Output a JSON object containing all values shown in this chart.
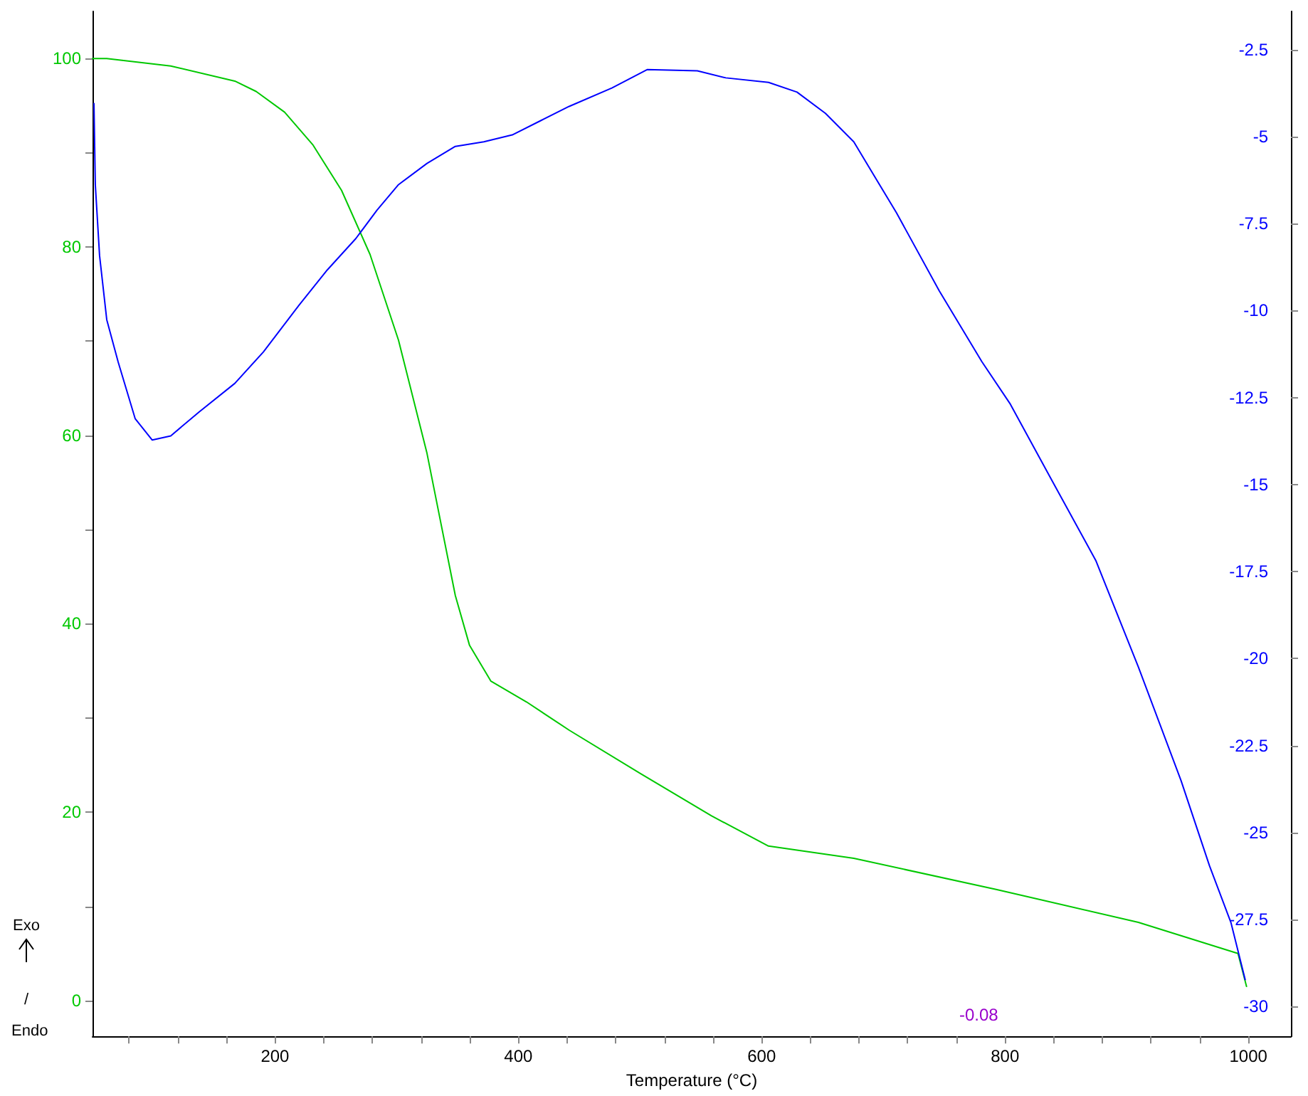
{
  "chart_data": {
    "type": "line",
    "xlabel": "Temperature (°C)",
    "xlim": [
      50,
      1035
    ],
    "ylim": [
      -3.8,
      105
    ],
    "y2lim": [
      -30.86,
      -1.4
    ],
    "xticks": [
      {
        "value": 80,
        "label": null
      },
      {
        "value": 120,
        "label": null
      },
      {
        "value": 160,
        "label": null
      },
      200,
      {
        "value": 240,
        "label": null
      },
      {
        "value": 280,
        "label": null
      },
      {
        "value": 320,
        "label": null
      },
      {
        "value": 360,
        "label": null
      },
      400,
      {
        "value": 440,
        "label": null
      },
      {
        "value": 480,
        "label": null
      },
      {
        "value": 520,
        "label": null
      },
      {
        "value": 560,
        "label": null
      },
      600,
      {
        "value": 640,
        "label": null
      },
      {
        "value": 680,
        "label": null
      },
      {
        "value": 720,
        "label": null
      },
      {
        "value": 760,
        "label": null
      },
      800,
      {
        "value": 840,
        "label": null
      },
      {
        "value": 880,
        "label": null
      },
      {
        "value": 920,
        "label": null
      },
      {
        "value": 960,
        "label": null
      },
      1000
    ],
    "yticks": [
      0,
      {
        "value": 10,
        "label": null
      },
      20,
      {
        "value": 30,
        "label": null
      },
      40,
      {
        "value": 50,
        "label": null
      },
      60,
      {
        "value": 70,
        "label": null
      },
      80,
      {
        "value": 90,
        "label": null
      },
      100
    ],
    "y2ticks": [
      -30,
      -27.5,
      -25,
      -22.5,
      -20,
      -17.5,
      -15,
      -12.5,
      -10,
      -7.5,
      -5,
      -2.5
    ],
    "grid": false,
    "marker": "none",
    "line_style": "solid",
    "annotations": [
      "Exo",
      "/",
      "Endo",
      "-0.08"
    ],
    "series": [
      {
        "color": "#00c800",
        "x": [
          50.0,
          61.7,
          114.3,
          167.0,
          184.5,
          207.9,
          231.3,
          254.7,
          278.1,
          301.5,
          324.9,
          336.6,
          348.2,
          359.9,
          377.5,
          406.7,
          441.8,
          500.3,
          558.8,
          605.6,
          675.7,
          792.7,
          909.6,
          991.5,
          998.5
        ],
        "values": [
          100.0,
          100.0,
          99.2,
          97.6,
          96.5,
          94.3,
          90.8,
          86.0,
          79.2,
          70.1,
          58.1,
          50.5,
          43.0,
          37.7,
          33.9,
          31.7,
          28.7,
          24.1,
          19.6,
          16.4,
          15.1,
          11.8,
          8.3,
          5.0,
          1.5
        ]
      },
      {
        "color": "#0000ff",
        "axis": "y2",
        "x": [
          51.2,
          52.3,
          55.8,
          61.7,
          71.1,
          85.1,
          99.1,
          114.3,
          137.7,
          167.0,
          190.4,
          219.6,
          243.0,
          266.4,
          283.9,
          301.5,
          324.9,
          348.2,
          371.6,
          395.0,
          418.4,
          441.8,
          476.9,
          506.1,
          547.1,
          570.5,
          605.6,
          629.0,
          652.4,
          675.7,
          710.8,
          745.9,
          781.0,
          804.4,
          839.5,
          874.6,
          909.6,
          944.7,
          968.1,
          985.7,
          997.4
        ],
        "values": [
          -4.05,
          -6.38,
          -8.42,
          -10.26,
          -11.48,
          -13.11,
          -13.72,
          -13.6,
          -12.91,
          -12.09,
          -11.19,
          -9.85,
          -8.83,
          -7.93,
          -7.11,
          -6.38,
          -5.77,
          -5.28,
          -5.15,
          -4.95,
          -4.54,
          -4.13,
          -3.6,
          -3.07,
          -3.11,
          -3.31,
          -3.44,
          -3.72,
          -4.33,
          -5.15,
          -7.19,
          -9.43,
          -11.47,
          -12.69,
          -14.94,
          -17.18,
          -20.24,
          -23.51,
          -25.96,
          -27.59,
          -29.23
        ]
      }
    ]
  }
}
